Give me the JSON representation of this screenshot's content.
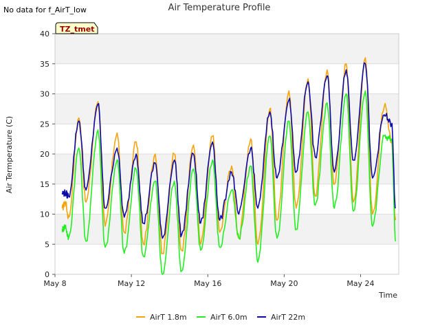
{
  "note": "No data for f_AirT_low",
  "chart_data": {
    "type": "line",
    "title": "Air Temperature Profile",
    "xlabel": "Time",
    "ylabel": "Air Termperature (C)",
    "ylim": [
      0,
      40
    ],
    "xlim": [
      "2018-05-08",
      "2018-05-26"
    ],
    "yticks": [
      0,
      5,
      10,
      15,
      20,
      25,
      30,
      35,
      40
    ],
    "xticks": [
      {
        "label": "May 8",
        "date": "2018-05-08"
      },
      {
        "label": "May 12",
        "date": "2018-05-12"
      },
      {
        "label": "May 16",
        "date": "2018-05-16"
      },
      {
        "label": "May 20",
        "date": "2018-05-20"
      },
      {
        "label": "May 24",
        "date": "2018-05-24"
      }
    ],
    "grid": "horizontal bands",
    "legend_position": "bottom",
    "site_label": "TZ_tmet",
    "series": [
      {
        "name": "AirT 1.8m",
        "color": "#f5a30a",
        "x": [
          "2018-05-08 09:00",
          "2018-05-08 13:00",
          "2018-05-08 17:00",
          "2018-05-09 06:00",
          "2018-05-09 15:00",
          "2018-05-10 06:00",
          "2018-05-10 15:00",
          "2018-05-11 06:00",
          "2018-05-11 15:00",
          "2018-05-12 06:00",
          "2018-05-12 15:00",
          "2018-05-13 06:00",
          "2018-05-13 15:00",
          "2018-05-14 06:00",
          "2018-05-14 15:00",
          "2018-05-15 06:00",
          "2018-05-15 15:00",
          "2018-05-16 06:00",
          "2018-05-16 15:00",
          "2018-05-17 06:00",
          "2018-05-17 15:00",
          "2018-05-18 06:00",
          "2018-05-18 15:00",
          "2018-05-19 06:00",
          "2018-05-19 15:00",
          "2018-05-20 06:00",
          "2018-05-20 15:00",
          "2018-05-21 06:00",
          "2018-05-21 15:00",
          "2018-05-22 06:00",
          "2018-05-22 15:00",
          "2018-05-23 06:00",
          "2018-05-23 15:00",
          "2018-05-24 06:00",
          "2018-05-24 15:00",
          "2018-05-25 06:00",
          "2018-05-25 15:00",
          "2018-05-25 20:00"
        ],
        "y": [
          11,
          12,
          9.5,
          26,
          12,
          28.7,
          8,
          23.5,
          7,
          22,
          5,
          20,
          3.5,
          20,
          4,
          21.5,
          5,
          23,
          7,
          18,
          6,
          22.5,
          5,
          27.5,
          9,
          30.5,
          11,
          32.5,
          13,
          34,
          15,
          35,
          12,
          36,
          10,
          28,
          22,
          9
        ]
      },
      {
        "name": "AirT 6.0m",
        "color": "#22ee22",
        "x": [
          "2018-05-08 09:00",
          "2018-05-08 13:00",
          "2018-05-08 17:00",
          "2018-05-09 06:00",
          "2018-05-09 15:00",
          "2018-05-10 06:00",
          "2018-05-10 15:00",
          "2018-05-11 06:00",
          "2018-05-11 15:00",
          "2018-05-12 06:00",
          "2018-05-12 15:00",
          "2018-05-13 06:00",
          "2018-05-13 15:00",
          "2018-05-14 06:00",
          "2018-05-14 15:00",
          "2018-05-15 06:00",
          "2018-05-15 15:00",
          "2018-05-16 06:00",
          "2018-05-16 15:00",
          "2018-05-17 06:00",
          "2018-05-17 15:00",
          "2018-05-18 06:00",
          "2018-05-18 15:00",
          "2018-05-19 06:00",
          "2018-05-19 15:00",
          "2018-05-20 06:00",
          "2018-05-20 15:00",
          "2018-05-21 06:00",
          "2018-05-21 15:00",
          "2018-05-22 06:00",
          "2018-05-22 15:00",
          "2018-05-23 06:00",
          "2018-05-23 15:00",
          "2018-05-24 06:00",
          "2018-05-24 15:00",
          "2018-05-25 06:00",
          "2018-05-25 15:00",
          "2018-05-25 20:00"
        ],
        "y": [
          7.5,
          8,
          6,
          21,
          5.5,
          24,
          4.5,
          19,
          3.5,
          17.5,
          3,
          15.5,
          0,
          15.5,
          0.5,
          17.5,
          4,
          19,
          4.5,
          14,
          6,
          18,
          2,
          23,
          6,
          25.5,
          7.5,
          27,
          11.5,
          28.5,
          11,
          30,
          10.5,
          30.5,
          8,
          23,
          22.5,
          5.5
        ]
      },
      {
        "name": "AirT 22m",
        "color": "#0a0aaa",
        "x": [
          "2018-05-08 09:00",
          "2018-05-08 13:00",
          "2018-05-08 17:00",
          "2018-05-09 06:00",
          "2018-05-09 15:00",
          "2018-05-10 06:00",
          "2018-05-10 15:00",
          "2018-05-11 06:00",
          "2018-05-11 15:00",
          "2018-05-12 06:00",
          "2018-05-12 15:00",
          "2018-05-13 06:00",
          "2018-05-13 15:00",
          "2018-05-14 06:00",
          "2018-05-14 15:00",
          "2018-05-15 06:00",
          "2018-05-15 15:00",
          "2018-05-16 06:00",
          "2018-05-16 15:00",
          "2018-05-17 06:00",
          "2018-05-17 15:00",
          "2018-05-18 06:00",
          "2018-05-18 15:00",
          "2018-05-19 06:00",
          "2018-05-19 15:00",
          "2018-05-20 06:00",
          "2018-05-20 15:00",
          "2018-05-21 06:00",
          "2018-05-21 15:00",
          "2018-05-22 06:00",
          "2018-05-22 15:00",
          "2018-05-23 06:00",
          "2018-05-23 15:00",
          "2018-05-24 06:00",
          "2018-05-24 15:00",
          "2018-05-25 06:00",
          "2018-05-25 15:00",
          "2018-05-25 20:00"
        ],
        "y": [
          13.5,
          13.5,
          13,
          25.5,
          14,
          28.3,
          11,
          21,
          9.5,
          20,
          8.5,
          18.5,
          6,
          19,
          6.5,
          20,
          8.5,
          22,
          9,
          17,
          10,
          21,
          11,
          27,
          16,
          29,
          17,
          32,
          19.5,
          33,
          17,
          34,
          19,
          35,
          16,
          26.5,
          25,
          11
        ]
      }
    ]
  }
}
